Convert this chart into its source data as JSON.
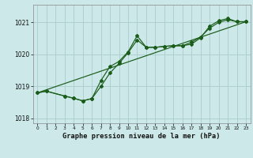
{
  "xlabel": "Graphe pression niveau de la mer (hPa)",
  "bg_color": "#cce8e8",
  "grid_color": "#aacccc",
  "line_color": "#1a5c1a",
  "x_values": [
    0,
    1,
    2,
    3,
    4,
    5,
    6,
    7,
    8,
    9,
    10,
    11,
    12,
    13,
    14,
    15,
    16,
    17,
    18,
    19,
    20,
    21,
    22,
    23
  ],
  "y_main": [
    1018.8,
    1018.85,
    null,
    1018.7,
    1018.63,
    1018.55,
    1018.62,
    1019.18,
    1019.62,
    1019.78,
    1020.08,
    1020.58,
    1020.22,
    1020.22,
    1020.25,
    1020.27,
    1020.27,
    1020.32,
    1020.52,
    1020.88,
    1021.05,
    1021.12,
    1021.02,
    1021.02
  ],
  "y_line2": [
    1018.8,
    1018.85,
    null,
    1018.7,
    1018.63,
    1018.55,
    1018.62,
    1019.0,
    1019.42,
    1019.72,
    1020.05,
    1020.45,
    1020.22,
    1020.22,
    1020.25,
    1020.27,
    1020.27,
    1020.38,
    1020.55,
    1020.82,
    1021.0,
    1021.08,
    1021.02,
    1021.02
  ],
  "ylim_min": 1017.85,
  "ylim_max": 1021.55,
  "yticks": [
    1018,
    1019,
    1020,
    1021
  ],
  "xticks": [
    0,
    1,
    2,
    3,
    4,
    5,
    6,
    7,
    8,
    9,
    10,
    11,
    12,
    13,
    14,
    15,
    16,
    17,
    18,
    19,
    20,
    21,
    22,
    23
  ],
  "figsize": [
    3.2,
    2.0
  ],
  "dpi": 100
}
